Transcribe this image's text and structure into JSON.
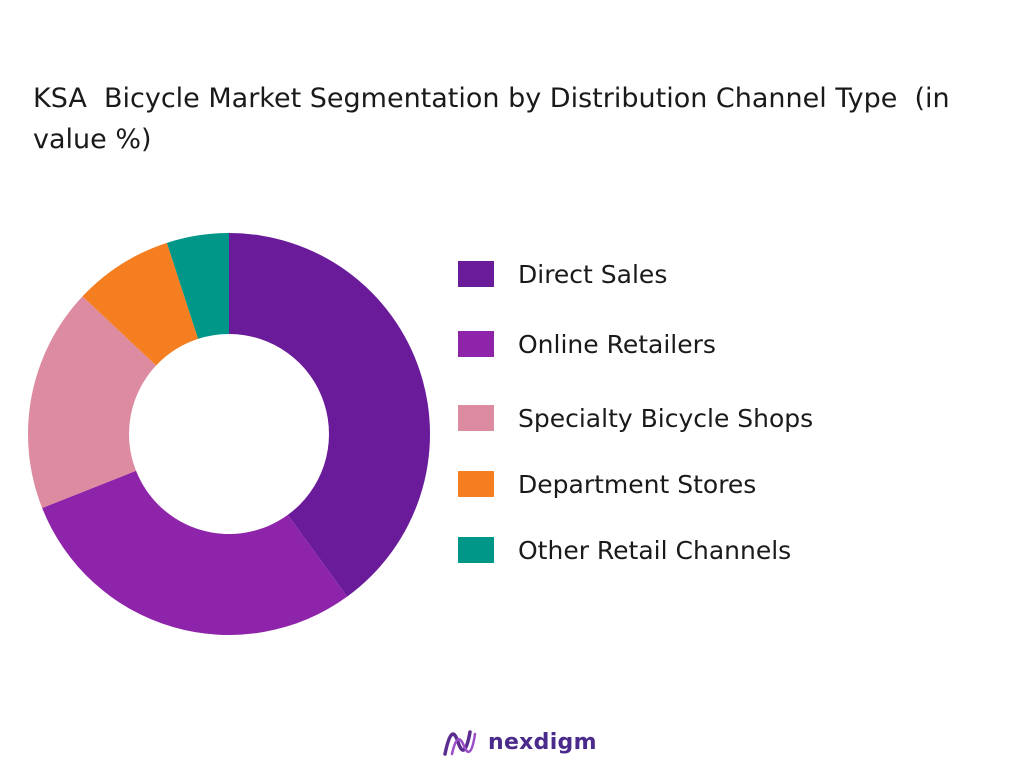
{
  "chart_data": {
    "type": "pie",
    "variant": "donut",
    "title": "KSA  Bicycle Market Segmentation by Distribution Channel Type  (in value %)",
    "categories": [
      "Direct Sales",
      "Online Retailers",
      "Specialty Bicycle Shops",
      "Department Stores",
      "Other Retail Channels"
    ],
    "values": [
      40,
      29,
      18,
      8,
      5
    ],
    "colors": [
      "#6a1b9a",
      "#8e24aa",
      "#dd8ba0",
      "#f57f20",
      "#009688"
    ],
    "legend_position": "right"
  },
  "brand": {
    "name": "nexdigm",
    "color": "#4a2a8a"
  }
}
